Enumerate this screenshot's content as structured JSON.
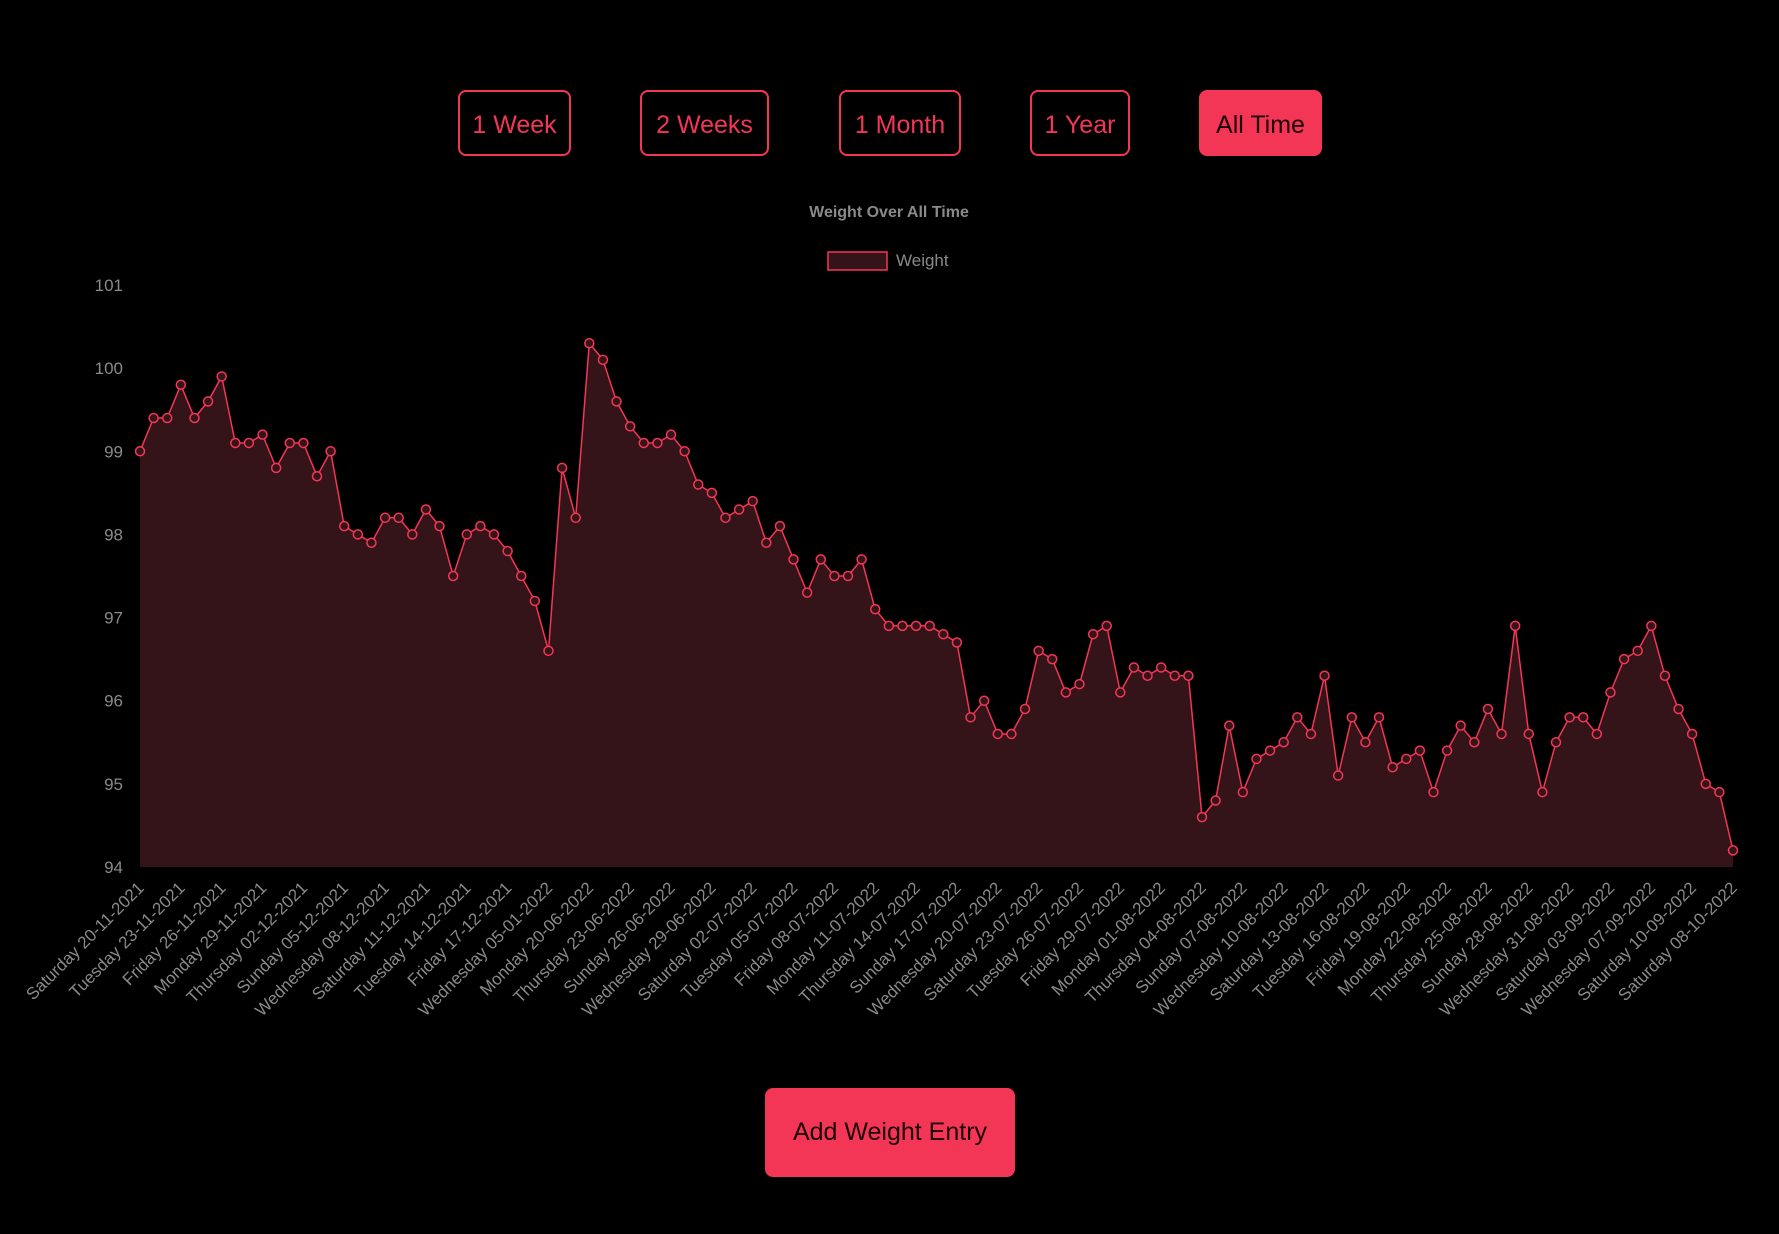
{
  "range_buttons": [
    {
      "label": "1 Week",
      "active": false
    },
    {
      "label": "2 Weeks",
      "active": false
    },
    {
      "label": "1 Month",
      "active": false
    },
    {
      "label": "1 Year",
      "active": false
    },
    {
      "label": "All Time",
      "active": true
    }
  ],
  "add_entry_label": "Add Weight Entry",
  "colors": {
    "accent": "#f43656",
    "fill": "#341418",
    "text_muted": "#8a8a8a",
    "background": "#000000"
  },
  "chart_data": {
    "type": "area",
    "title": "Weight Over All Time",
    "legend": {
      "position": "top",
      "entries": [
        "Weight"
      ]
    },
    "ylim": [
      94,
      101
    ],
    "yticks": [
      94,
      95,
      96,
      97,
      98,
      99,
      100,
      101
    ],
    "grid": false,
    "xtick_labels": [
      "Saturday 20-11-2021",
      "Tuesday 23-11-2021",
      "Friday 26-11-2021",
      "Monday 29-11-2021",
      "Thursday 02-12-2021",
      "Sunday 05-12-2021",
      "Wednesday 08-12-2021",
      "Saturday 11-12-2021",
      "Tuesday 14-12-2021",
      "Friday 17-12-2021",
      "Wednesday 05-01-2022",
      "Monday 20-06-2022",
      "Thursday 23-06-2022",
      "Sunday 26-06-2022",
      "Wednesday 29-06-2022",
      "Saturday 02-07-2022",
      "Tuesday 05-07-2022",
      "Friday 08-07-2022",
      "Monday 11-07-2022",
      "Thursday 14-07-2022",
      "Sunday 17-07-2022",
      "Wednesday 20-07-2022",
      "Saturday 23-07-2022",
      "Tuesday 26-07-2022",
      "Friday 29-07-2022",
      "Monday 01-08-2022",
      "Thursday 04-08-2022",
      "Sunday 07-08-2022",
      "Wednesday 10-08-2022",
      "Saturday 13-08-2022",
      "Tuesday 16-08-2022",
      "Friday 19-08-2022",
      "Monday 22-08-2022",
      "Thursday 25-08-2022",
      "Sunday 28-08-2022",
      "Wednesday 31-08-2022",
      "Saturday 03-09-2022",
      "Wednesday 07-09-2022",
      "Saturday 10-09-2022",
      "Saturday 08-10-2022"
    ],
    "series": [
      {
        "name": "Weight",
        "values": [
          99.0,
          99.4,
          99.4,
          99.8,
          99.4,
          99.6,
          99.9,
          99.1,
          99.1,
          99.2,
          98.8,
          99.1,
          99.1,
          98.7,
          99.0,
          98.1,
          98.0,
          97.9,
          98.2,
          98.2,
          98.0,
          98.3,
          98.1,
          97.5,
          98.0,
          98.1,
          98.0,
          97.8,
          97.5,
          97.2,
          96.6,
          98.8,
          98.2,
          100.3,
          100.1,
          99.6,
          99.3,
          99.1,
          99.1,
          99.2,
          99.0,
          98.6,
          98.5,
          98.2,
          98.3,
          98.4,
          97.9,
          98.1,
          97.7,
          97.3,
          97.7,
          97.5,
          97.5,
          97.7,
          97.1,
          96.9,
          96.9,
          96.9,
          96.9,
          96.8,
          96.7,
          95.8,
          96.0,
          95.6,
          95.6,
          95.9,
          96.6,
          96.5,
          96.1,
          96.2,
          96.8,
          96.9,
          96.1,
          96.4,
          96.3,
          96.4,
          96.3,
          96.3,
          94.6,
          94.8,
          95.7,
          94.9,
          95.3,
          95.4,
          95.5,
          95.8,
          95.6,
          96.3,
          95.1,
          95.8,
          95.5,
          95.8,
          95.2,
          95.3,
          95.4,
          94.9,
          95.4,
          95.7,
          95.5,
          95.9,
          95.6,
          96.9,
          95.6,
          94.9,
          95.5,
          95.8,
          95.8,
          95.6,
          96.1,
          96.5,
          96.6,
          96.9,
          96.3,
          95.9,
          95.6,
          95.0,
          94.9,
          94.2
        ]
      }
    ]
  }
}
